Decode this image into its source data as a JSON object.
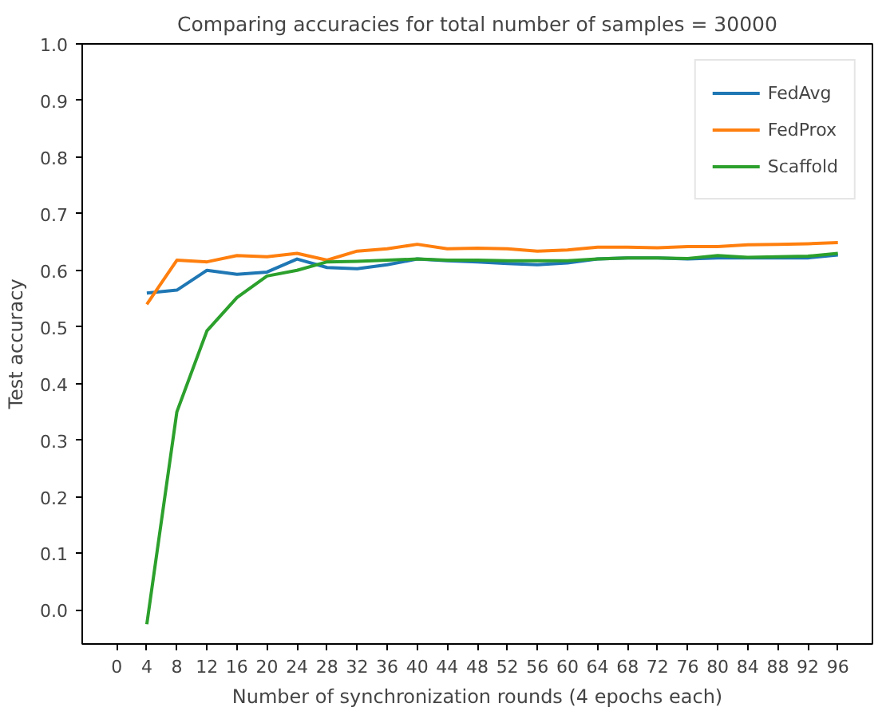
{
  "chart_data": {
    "type": "line",
    "title": "Comparing accuracies for total number of samples = 30000",
    "xlabel": "Number of synchronization rounds (4 epochs each)",
    "ylabel": "Test accuracy",
    "x": [
      4,
      8,
      12,
      16,
      20,
      24,
      28,
      32,
      36,
      40,
      44,
      48,
      52,
      56,
      60,
      64,
      68,
      72,
      76,
      80,
      84,
      88,
      92,
      96
    ],
    "series": [
      {
        "name": "FedAvg",
        "color": "#1f77b4",
        "values": [
          0.56,
          0.565,
          0.6,
          0.593,
          0.597,
          0.62,
          0.605,
          0.603,
          0.61,
          0.62,
          0.617,
          0.615,
          0.612,
          0.61,
          0.613,
          0.62,
          0.622,
          0.622,
          0.62,
          0.622,
          0.622,
          0.622,
          0.622,
          0.627
        ]
      },
      {
        "name": "FedProx",
        "color": "#ff7f0e",
        "values": [
          0.54,
          0.618,
          0.615,
          0.626,
          0.624,
          0.63,
          0.618,
          0.634,
          0.638,
          0.646,
          0.638,
          0.639,
          0.638,
          0.634,
          0.636,
          0.641,
          0.641,
          0.64,
          0.642,
          0.642,
          0.645,
          0.646,
          0.647,
          0.649
        ]
      },
      {
        "name": "Scaffold",
        "color": "#2ca02c",
        "values": [
          -0.025,
          0.35,
          0.493,
          0.552,
          0.59,
          0.6,
          0.615,
          0.616,
          0.618,
          0.62,
          0.618,
          0.618,
          0.617,
          0.617,
          0.617,
          0.62,
          0.622,
          0.622,
          0.621,
          0.626,
          0.623,
          0.624,
          0.625,
          0.63
        ]
      }
    ],
    "xlim": [
      -4.6,
      100.6
    ],
    "ylim": [
      -0.06,
      1.0
    ],
    "xticks": [
      0,
      4,
      8,
      12,
      16,
      20,
      24,
      28,
      32,
      36,
      40,
      44,
      48,
      52,
      56,
      60,
      64,
      68,
      72,
      76,
      80,
      84,
      88,
      92,
      96
    ],
    "yticks": [
      {
        "value": 0,
        "label": "0.0"
      },
      0.1,
      0.2,
      0.3,
      0.4,
      0.5,
      0.6,
      0.7,
      0.8,
      0.9,
      {
        "value": 1,
        "label": "1.0"
      }
    ],
    "grid": false,
    "legend": "top right",
    "line_style": "solid",
    "marker": "none"
  }
}
